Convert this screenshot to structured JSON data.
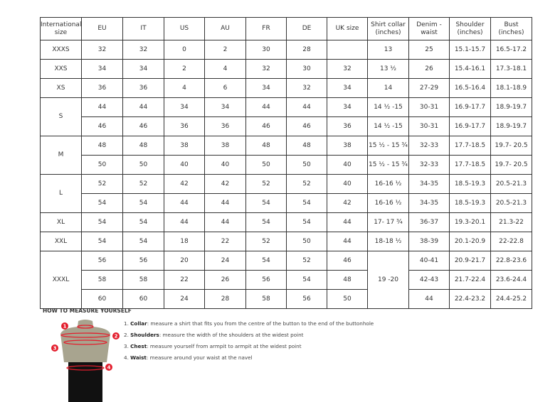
{
  "table": {
    "headers": [
      "International size",
      "EU",
      "IT",
      "US",
      "AU",
      "FR",
      "DE",
      "UK size",
      "Shirt collar (inches)",
      "Denim - waist",
      "Shoulder (inches)",
      "Bust (inches)"
    ],
    "groups": [
      {
        "size": "XXXS",
        "rows": [
          [
            "32",
            "32",
            "0",
            "2",
            "30",
            "28",
            "",
            "13",
            "25",
            "15.1-15.7",
            "16.5-17.2"
          ]
        ]
      },
      {
        "size": "XXS",
        "rows": [
          [
            "34",
            "34",
            "2",
            "4",
            "32",
            "30",
            "32",
            "13 ½",
            "26",
            "15.4-16.1",
            "17.3-18.1"
          ]
        ]
      },
      {
        "size": "XS",
        "rows": [
          [
            "36",
            "36",
            "4",
            "6",
            "34",
            "32",
            "34",
            "14",
            "27-29",
            "16.5-16.4",
            "18.1-18.9"
          ]
        ]
      },
      {
        "size": "S",
        "rows": [
          [
            "44",
            "44",
            "34",
            "34",
            "44",
            "44",
            "34",
            "14 ½ -15",
            "30-31",
            "16.9-17.7",
            "18.9-19.7"
          ],
          [
            "46",
            "46",
            "36",
            "36",
            "46",
            "46",
            "36",
            "14 ½ -15",
            "30-31",
            "16.9-17.7",
            "18.9-19.7"
          ]
        ]
      },
      {
        "size": "M",
        "rows": [
          [
            "48",
            "48",
            "38",
            "38",
            "48",
            "48",
            "38",
            "15 ½ - 15 ¾",
            "32-33",
            "17.7-18.5",
            "19.7- 20.5"
          ],
          [
            "50",
            "50",
            "40",
            "40",
            "50",
            "50",
            "40",
            "15 ½ - 15 ¾",
            "32-33",
            "17.7-18.5",
            "19.7- 20.5"
          ]
        ]
      },
      {
        "size": "L",
        "rows": [
          [
            "52",
            "52",
            "42",
            "42",
            "52",
            "52",
            "40",
            "16-16 ½",
            "34-35",
            "18.5-19.3",
            "20.5-21.3"
          ],
          [
            "54",
            "54",
            "44",
            "44",
            "54",
            "54",
            "42",
            "16-16 ½",
            "34-35",
            "18.5-19.3",
            "20.5-21.3"
          ]
        ]
      },
      {
        "size": "XL",
        "rows": [
          [
            "54",
            "54",
            "44",
            "44",
            "54",
            "54",
            "44",
            "17- 17 ¾",
            "36-37",
            "19.3-20.1",
            "21.3-22"
          ]
        ]
      },
      {
        "size": "XXL",
        "rows": [
          [
            "54",
            "54",
            "18",
            "22",
            "52",
            "50",
            "44",
            "18-18 ½",
            "38-39",
            "20.1-20.9",
            "22-22.8"
          ]
        ]
      },
      {
        "size": "XXXL",
        "collar_merged": "19 -20",
        "rows": [
          [
            "56",
            "56",
            "20",
            "24",
            "54",
            "52",
            "46",
            null,
            "40-41",
            "20.9-21.7",
            "22.8-23.6"
          ],
          [
            "58",
            "58",
            "22",
            "26",
            "56",
            "54",
            "48",
            null,
            "42-43",
            "21.7-22.4",
            "23.6-24.4"
          ],
          [
            "60",
            "60",
            "24",
            "28",
            "58",
            "56",
            "50",
            null,
            "44",
            "22.4-23.2",
            "24.4-25.2"
          ]
        ]
      }
    ]
  },
  "howto": {
    "title": "HOW TO MEASURE YOURSELF",
    "steps": [
      {
        "num": "1.",
        "term": "Collar",
        "text": ": measure a shirt that fits you from the centre of the button to the end of the buttonhole"
      },
      {
        "num": "2.",
        "term": "Shoulders",
        "text": ": measure the width of the shoulders at the widest point"
      },
      {
        "num": "3.",
        "term": "Chest",
        "text": ": measure yourself from armpit to armpit at the widest point"
      },
      {
        "num": "4.",
        "term": "Waist",
        "text": ": measure around your waist at the navel"
      }
    ],
    "markers": [
      "1",
      "2",
      "3",
      "4"
    ]
  },
  "colors": {
    "marker": "#e31e2d",
    "torso": "#a8a48f",
    "shorts": "#111111"
  }
}
